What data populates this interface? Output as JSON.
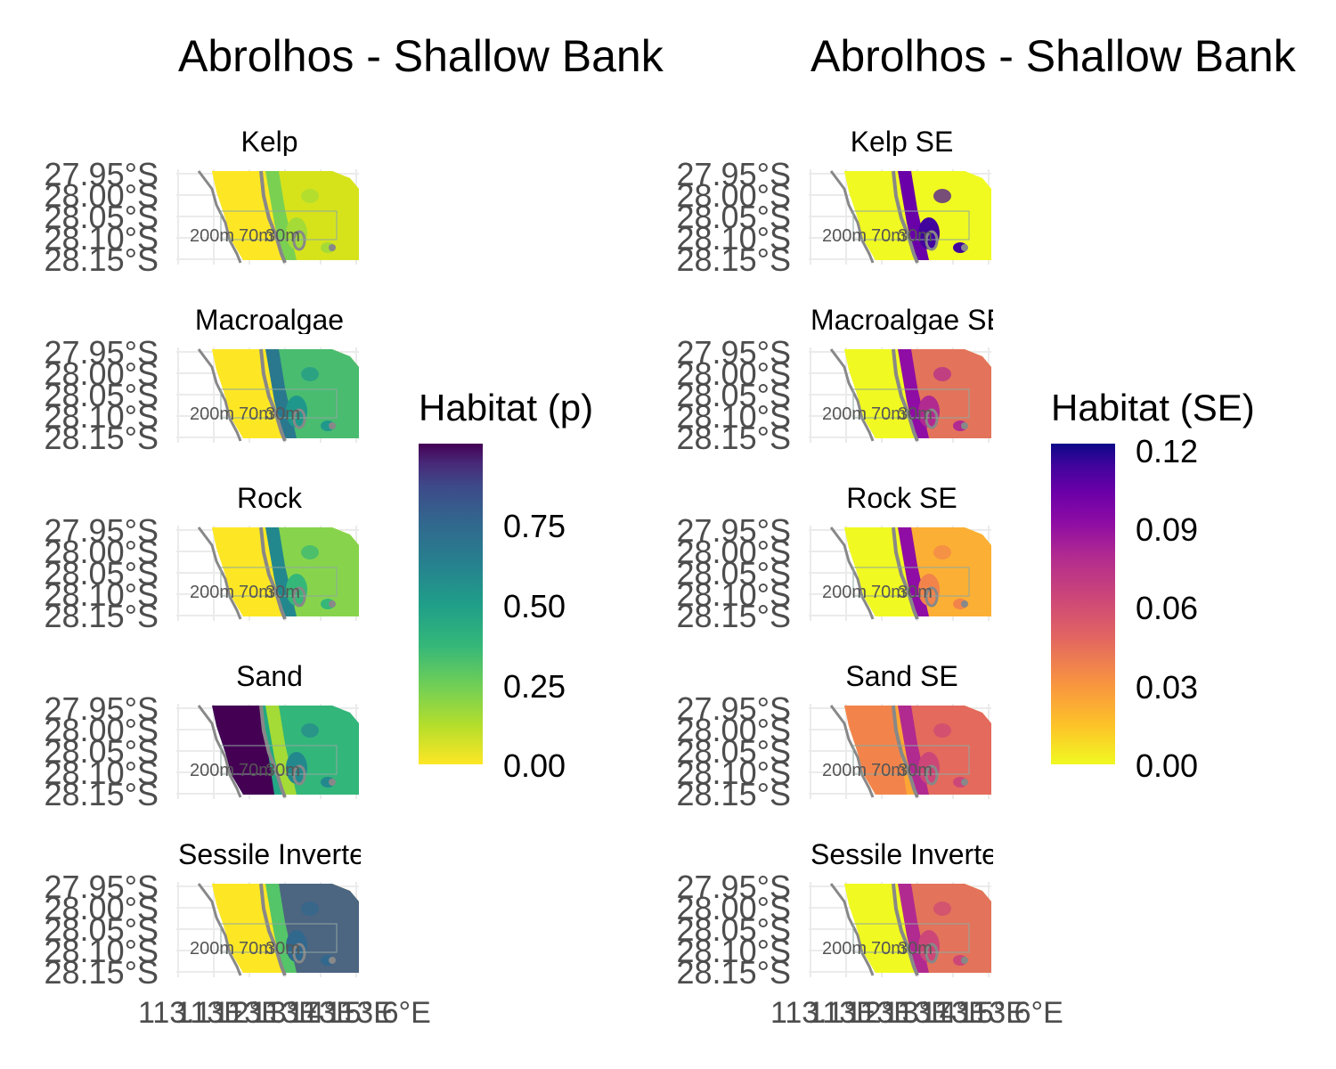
{
  "left": {
    "title": "Abrolhos - Shallow Bank",
    "panels": [
      "Kelp",
      "Macroalgae",
      "Rock",
      "Sand",
      "Sessile Invertebrates"
    ],
    "legend": {
      "title": "Habitat (p)",
      "ticks": [
        "0.75",
        "0.50",
        "0.25",
        "0.00"
      ],
      "palette": "viridis"
    }
  },
  "right": {
    "title": "Abrolhos - Shallow Bank",
    "panels": [
      "Kelp SE",
      "Macroalgae SE",
      "Rock SE",
      "Sand SE",
      "Sessile Invertebrates SE"
    ],
    "legend": {
      "title": "Habitat (SE)",
      "ticks": [
        "0.12",
        "0.09",
        "0.06",
        "0.03",
        "0.00"
      ],
      "palette": "plasma"
    }
  },
  "lat_labels": [
    "27.95°S",
    "28.00°S",
    "28.05°S",
    "28.10°S",
    "28.15°S"
  ],
  "lon_labels": [
    "113.1°E",
    "113.2°E",
    "113.3°E",
    "113.4°E",
    "113.5°E",
    "113.6°E"
  ],
  "contour_labels": [
    "200m",
    "70m",
    "30m"
  ],
  "colors": {
    "viridis_low": "#fde725",
    "viridis_mid": "#21918c",
    "viridis_high": "#440154",
    "plasma_low": "#f0f921",
    "plasma_mid": "#cc4778",
    "plasma_high": "#0d0887",
    "contour": "#888888",
    "axis_text": "#4d4d4d"
  }
}
